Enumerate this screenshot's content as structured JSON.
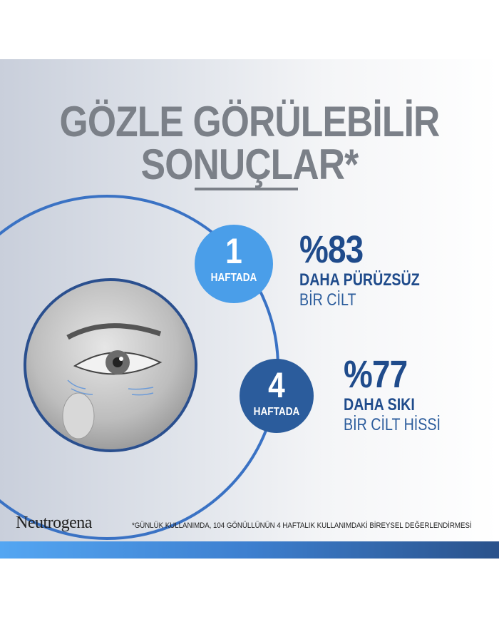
{
  "headline": {
    "line1": "GÖZLE GÖRÜLEBİLİR",
    "line2": "SONUÇLAR*"
  },
  "milestones": [
    {
      "number": "1",
      "unit": "HAFTADA",
      "percent": "%83",
      "line1": "DAHA PÜRÜZSÜZ",
      "line2": "BİR CİLT",
      "color": "#4a9ee9"
    },
    {
      "number": "4",
      "unit": "HAFTADA",
      "percent": "%77",
      "line1": "DAHA SIKI",
      "line2": "BİR CİLT HİSSİ",
      "color": "#2b5c9c"
    }
  ],
  "footer": {
    "brand": "Neutrogena",
    "footnote": "*GÜNLÜK KULLANIMDA, 104 GÖNÜLLÜNÜN 4 HAFTALIK KULLANIMDAKİ BİREYSEL DEĞERLENDİRMESİ"
  },
  "colors": {
    "title": "#7b8088",
    "text": "#1f4b8b",
    "arc": "#3a72c4"
  }
}
